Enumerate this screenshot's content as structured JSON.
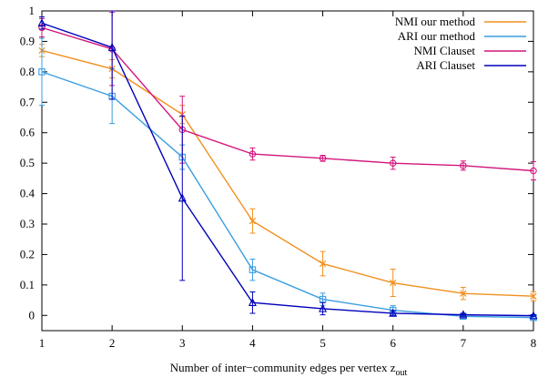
{
  "chart_data": {
    "type": "line",
    "title": "",
    "xlabel": "Number of inter−community edges per vertex z",
    "xlabel_subscript": "out",
    "ylabel": "",
    "xlim": [
      1,
      8
    ],
    "ylim": [
      -0.05,
      1.0
    ],
    "xticks": [
      "1",
      "2",
      "3",
      "4",
      "5",
      "6",
      "7",
      "8"
    ],
    "yticks": [
      "0",
      "0.1",
      "0.2",
      "0.3",
      "0.4",
      "0.5",
      "0.6",
      "0.7",
      "0.8",
      "0.9",
      "1"
    ],
    "grid": false,
    "legend_position": "top-right",
    "x": [
      1,
      2,
      3,
      4,
      5,
      6,
      7,
      8
    ],
    "series": [
      {
        "name": "NMI our method",
        "color": "#f0901f",
        "marker": "x",
        "values": [
          0.87,
          0.81,
          0.66,
          0.31,
          0.17,
          0.107,
          0.072,
          0.063
        ],
        "errors": [
          0.02,
          0.03,
          0.03,
          0.04,
          0.04,
          0.045,
          0.02,
          0.015
        ]
      },
      {
        "name": "ARI our method",
        "color": "#3a9ee0",
        "marker": "square",
        "values": [
          0.8,
          0.72,
          0.52,
          0.15,
          0.053,
          0.017,
          -0.003,
          -0.007
        ],
        "errors": [
          0.11,
          0.09,
          0.04,
          0.035,
          0.02,
          0.015,
          0.008,
          0.006
        ]
      },
      {
        "name": "NMI Clauset",
        "color": "#d2177d",
        "marker": "circle",
        "values": [
          0.945,
          0.875,
          0.61,
          0.53,
          0.516,
          0.5,
          0.492,
          0.475
        ],
        "errors": [
          0.03,
          0.12,
          0.11,
          0.02,
          0.01,
          0.02,
          0.015,
          0.03
        ]
      },
      {
        "name": "ARI Clauset",
        "color": "#0000bb",
        "marker": "triangle",
        "values": [
          0.96,
          0.88,
          0.385,
          0.042,
          0.022,
          0.007,
          0.002,
          -0.001
        ],
        "errors": [
          0.02,
          0.17,
          0.27,
          0.035,
          0.02,
          0.008,
          0.005,
          0.003
        ]
      }
    ]
  }
}
